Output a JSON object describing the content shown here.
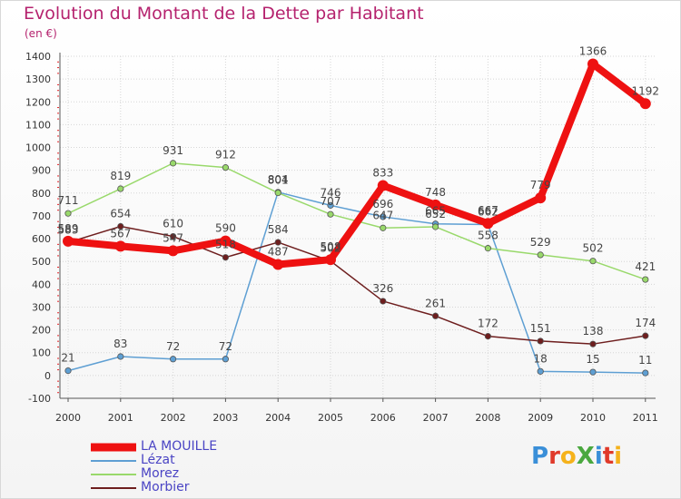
{
  "title": "Evolution du Montant de la Dette par Habitant",
  "subtitle": "(en €)",
  "logo": {
    "text": "ProXiti",
    "letter_colors": [
      "#3a8fd8",
      "#e03a2a",
      "#f5b21b",
      "#4aa83f",
      "#3a8fd8",
      "#e03a2a",
      "#f5b21b"
    ]
  },
  "chart_data": {
    "type": "line",
    "title": "Evolution du Montant de la Dette par Habitant",
    "subtitle": "(en €)",
    "categories": [
      "2000",
      "2001",
      "2002",
      "2003",
      "2004",
      "2005",
      "2006",
      "2007",
      "2008",
      "2009",
      "2010",
      "2011"
    ],
    "ylim": [
      -100,
      1400
    ],
    "yticks": [
      "-100",
      "0",
      "100",
      "200",
      "300",
      "400",
      "500",
      "600",
      "700",
      "800",
      "900",
      "1000",
      "1100",
      "1200",
      "1300",
      "1400"
    ],
    "grid": true,
    "legend_position": "bottom-left",
    "series": [
      {
        "name": "LA MOUILLE",
        "color": "#ee1111",
        "width": 8,
        "marker": 6,
        "values": [
          589,
          567,
          547,
          590,
          487,
          508,
          833,
          748,
          667,
          779,
          1366,
          1192
        ],
        "labels": [
          "589",
          "567",
          "547",
          "590",
          "487",
          "508",
          "833",
          "748",
          "667",
          "779",
          "1366",
          "1192"
        ]
      },
      {
        "name": "Lézat",
        "color": "#5e9fd3",
        "width": 1.5,
        "marker": 3.2,
        "values": [
          21,
          83,
          72,
          72,
          804,
          746,
          696,
          665,
          662,
          18,
          15,
          11
        ],
        "labels": [
          "21",
          "83",
          "72",
          "72",
          "804",
          "746",
          "696",
          "665",
          "662",
          "18",
          "15",
          "11"
        ]
      },
      {
        "name": "Morez",
        "color": "#99d96b",
        "width": 1.5,
        "marker": 3.2,
        "values": [
          711,
          819,
          931,
          912,
          801,
          707,
          647,
          652,
          558,
          529,
          502,
          421
        ],
        "labels": [
          "711",
          "819",
          "931",
          "912",
          "801",
          "707",
          "647",
          "652",
          "558",
          "529",
          "502",
          "421"
        ]
      },
      {
        "name": "Morbier",
        "color": "#6e1e1e",
        "width": 1.5,
        "marker": 3.2,
        "values": [
          583,
          654,
          610,
          518,
          584,
          502,
          326,
          261,
          172,
          151,
          138,
          174
        ],
        "labels": [
          "583",
          "654",
          "610",
          "518",
          "584",
          "502",
          "326",
          "261",
          "172",
          "151",
          "138",
          "174"
        ]
      }
    ]
  }
}
